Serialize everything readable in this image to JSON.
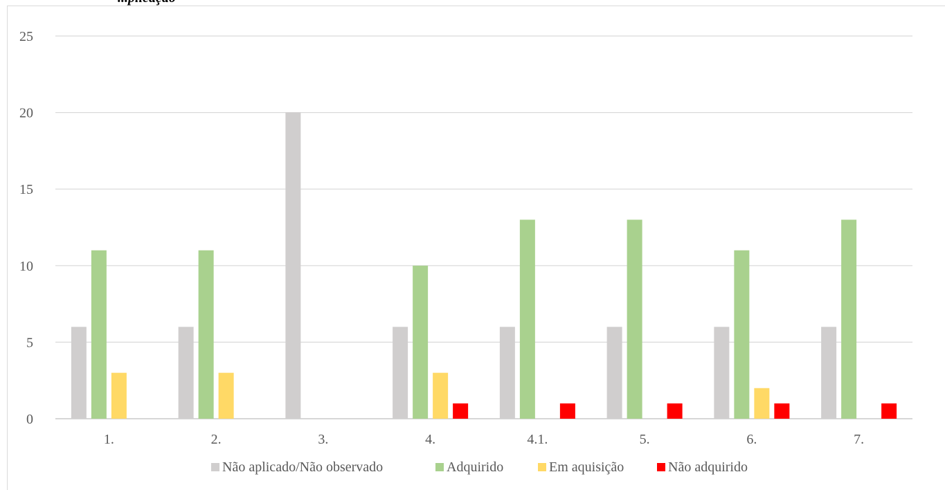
{
  "clipped_caption": "...plicação",
  "chart_data": {
    "type": "bar",
    "categories": [
      "1.",
      "2.",
      "3.",
      "4.",
      "4.1.",
      "5.",
      "6.",
      "7."
    ],
    "series": [
      {
        "name": "Não aplicado/Não observado",
        "color": "#d0cece",
        "values": [
          6,
          6,
          20,
          6,
          6,
          6,
          6,
          6
        ]
      },
      {
        "name": "Adquirido",
        "color": "#a9d18e",
        "values": [
          11,
          11,
          0,
          10,
          13,
          13,
          11,
          13
        ]
      },
      {
        "name": "Em aquisição",
        "color": "#ffd966",
        "values": [
          3,
          3,
          0,
          3,
          0,
          0,
          2,
          0
        ]
      },
      {
        "name": "Não adquirido",
        "color": "#ff0000",
        "values": [
          0,
          0,
          0,
          1,
          1,
          1,
          1,
          1
        ]
      }
    ],
    "yticks": [
      "0",
      "5",
      "10",
      "15",
      "20",
      "25"
    ],
    "ylim": [
      0,
      25
    ],
    "grid": true,
    "legend_position": "bottom",
    "title": "",
    "xlabel": "",
    "ylabel": ""
  }
}
